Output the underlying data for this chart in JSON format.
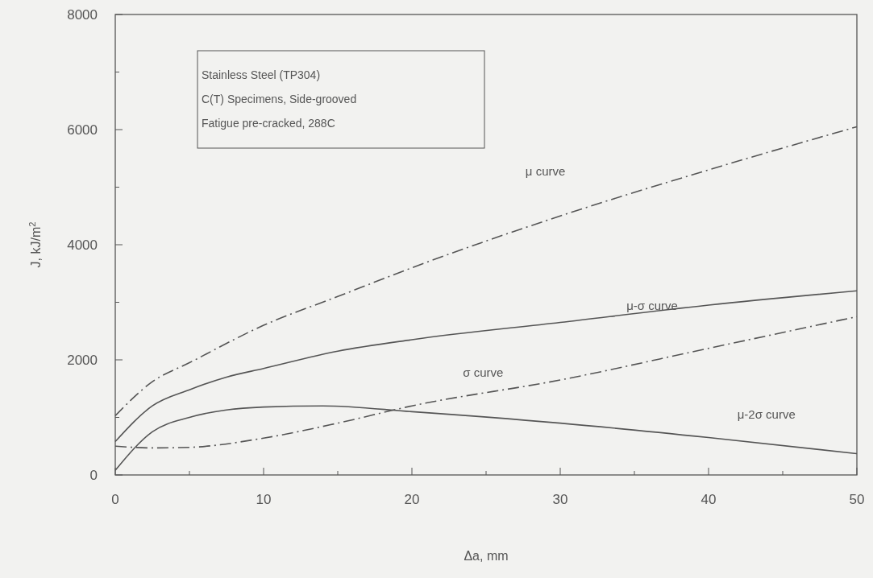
{
  "chart_data": {
    "type": "line",
    "xlabel": "Δa, mm",
    "ylabel": "J, kJ/m$^{2}$",
    "annotations": [
      "Stainless Steel (TP304)",
      "C(T) Specimens, Side-grooved",
      "Fatigue pre-cracked, 288C"
    ],
    "xlim": [
      0,
      50
    ],
    "ylim": [
      0,
      8000
    ],
    "xticks": [
      0,
      {
        "value": 5,
        "label": null
      },
      10,
      {
        "value": 15,
        "label": null
      },
      20,
      {
        "value": 25,
        "label": null
      },
      30,
      {
        "value": 35,
        "label": null
      },
      40,
      {
        "value": 45,
        "label": null
      },
      50
    ],
    "yticks": [
      0,
      {
        "value": 1000,
        "label": null
      },
      2000,
      {
        "value": 3000,
        "label": null
      },
      4000,
      {
        "value": 5000,
        "label": null
      },
      6000,
      {
        "value": 7000,
        "label": null
      },
      8000
    ],
    "grid": false,
    "marker": "none",
    "series": [
      {
        "name": "μ curve",
        "color": "#555555",
        "line_style": "dashed",
        "x": [
          0,
          2.5,
          5,
          10,
          15,
          20,
          30,
          40,
          50
        ],
        "values": [
          1030,
          1620,
          1950,
          2600,
          3100,
          3600,
          4500,
          5300,
          6050
        ]
      },
      {
        "name": "μ-σ curve",
        "color": "#555555",
        "line_style": "solid",
        "x": [
          0,
          2.5,
          5,
          7.5,
          10,
          15,
          20,
          30,
          40,
          50
        ],
        "values": [
          580,
          1200,
          1480,
          1700,
          1850,
          2150,
          2350,
          2650,
          2950,
          3200
        ]
      },
      {
        "name": "σ curve",
        "color": "#555555",
        "line_style": "dashed",
        "x": [
          0,
          2.5,
          5,
          10,
          15,
          20,
          30,
          40,
          50
        ],
        "values": [
          500,
          470,
          480,
          640,
          900,
          1200,
          1650,
          2200,
          2750
        ]
      },
      {
        "name": "μ-2σ curve",
        "color": "#555555",
        "line_style": "solid",
        "x": [
          0,
          2.5,
          5,
          7.5,
          10,
          14,
          20,
          30,
          40,
          50
        ],
        "values": [
          80,
          750,
          1000,
          1130,
          1180,
          1200,
          1100,
          900,
          650,
          370
        ]
      }
    ]
  }
}
